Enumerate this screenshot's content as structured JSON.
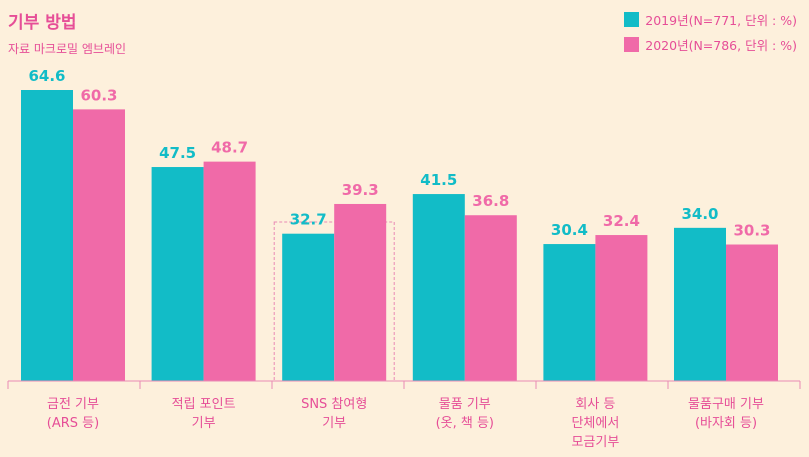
{
  "title": "기부 방법",
  "subtitle": "자료 마크로밀 엠브레인",
  "chart_data": {
    "type": "bar",
    "title": "기부 방법",
    "categories": [
      "금전 기부\n(ARS 등)",
      "적립 포인트\n기부",
      "SNS 참여형\n기부",
      "물품 기부\n(옷, 책 등)",
      "회사 등\n단체에서\n모금기부",
      "물품구매 기부\n(바자회 등)"
    ],
    "series": [
      {
        "name": "2019년(N=771, 단위 : %)",
        "color": "#12bcc7",
        "values": [
          64.6,
          47.5,
          32.7,
          41.5,
          30.4,
          34.0
        ]
      },
      {
        "name": "2020년(N=786, 단위 : %)",
        "color": "#f06aa8",
        "values": [
          60.3,
          48.7,
          39.3,
          36.8,
          32.4,
          30.3
        ]
      }
    ],
    "value_labels": [
      [
        "64.6",
        "47.5",
        "32.7",
        "41.5",
        "30.4",
        "34.0"
      ],
      [
        "60.3",
        "48.7",
        "39.3",
        "36.8",
        "32.4",
        "30.3"
      ]
    ],
    "ylim": [
      0,
      70
    ],
    "highlighted_category_index": 2,
    "grid": false,
    "legend_position": "top-right"
  }
}
